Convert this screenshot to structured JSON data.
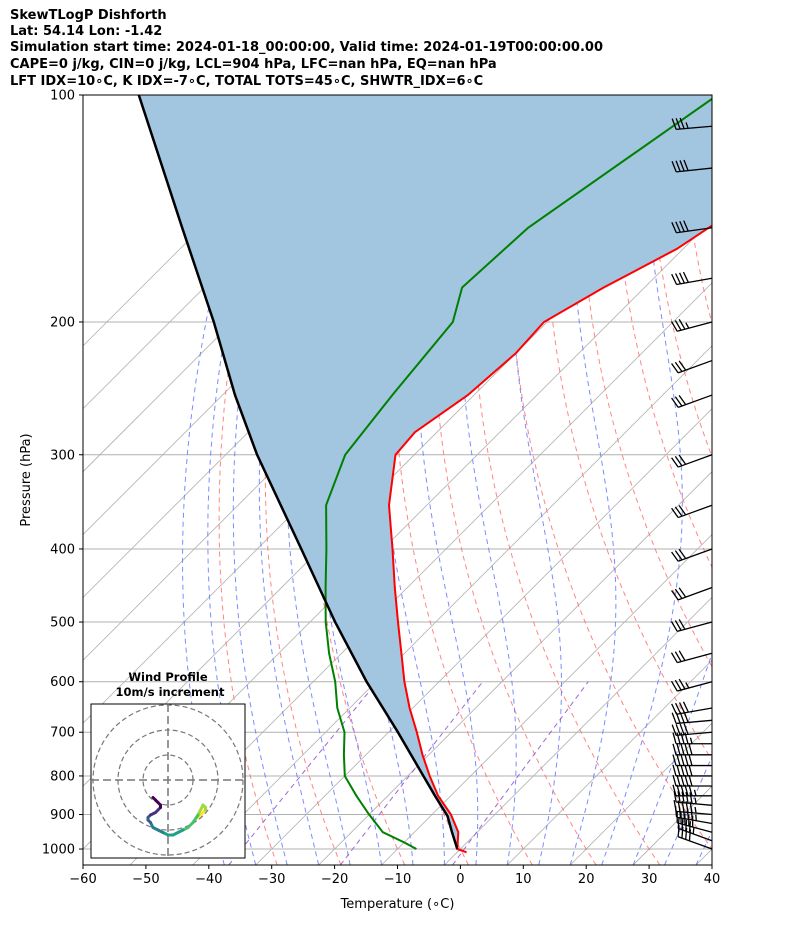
{
  "header": {
    "line1": "SkewTLogP Dishforth",
    "line2": "Lat: 54.14    Lon: -1.42",
    "line3": "Simulation start time: 2024-01-18_00:00:00, Valid time: 2024-01-19T00:00:00.00",
    "line4": "CAPE=0 j/kg, CIN=0 j/kg, LCL=904 hPa, LFC=nan hPa, EQ=nan hPa",
    "line5": "LFT IDX=10∘C, K IDX=-7∘C, TOTAL TOTS=45∘C, SHWTR_IDX=6∘C"
  },
  "chart_data": {
    "type": "skewt",
    "xlabel": "Temperature (∘C)",
    "ylabel": "Pressure (hPa)",
    "xlim": [
      -60,
      40
    ],
    "ylim": [
      1050,
      100
    ],
    "x_ticks": [
      -60,
      -50,
      -40,
      -30,
      -20,
      -10,
      0,
      10,
      20,
      30,
      40
    ],
    "x_tick_labels": [
      "−60",
      "−50",
      "−40",
      "−30",
      "−20",
      "−10",
      "0",
      "10",
      "20",
      "30",
      "40"
    ],
    "y_ticks": [
      1000,
      900,
      800,
      700,
      600,
      500,
      400,
      300,
      200,
      100
    ],
    "y_tick_labels": [
      "1000",
      "900",
      "800",
      "700",
      "600",
      "500",
      "400",
      "300",
      "200",
      "100"
    ],
    "y_scale": "log",
    "grid": true,
    "colors": {
      "temperature": "#ff0000",
      "dewpoint": "#008000",
      "parcel": "#000000",
      "cape_fill": "#a2c5e0",
      "dry_adiabats": "#ff6666",
      "moist_adiabats": "#6677ff",
      "mixing_ratio": "#9955cc",
      "isotherms": "#b0b0b0"
    },
    "temperature": {
      "p": [
        1010,
        1000,
        950,
        900,
        850,
        800,
        750,
        700,
        650,
        600,
        550,
        500,
        450,
        400,
        350,
        300,
        280,
        250,
        220,
        200,
        180,
        160,
        140,
        120,
        100
      ],
      "t": [
        1.5,
        -0.5,
        -3,
        -7,
        -12,
        -16.5,
        -21,
        -25.5,
        -30.5,
        -35.5,
        -40.5,
        -46,
        -52,
        -58.5,
        -66,
        -73,
        -73.5,
        -71,
        -70,
        -70.5,
        -66.5,
        -61,
        -57.5,
        -54.5,
        -52
      ]
    },
    "dewpoint": {
      "p": [
        1000,
        980,
        950,
        900,
        850,
        800,
        750,
        700,
        650,
        600,
        550,
        500,
        450,
        400,
        350,
        300,
        250,
        200,
        180,
        150,
        100
      ],
      "t": [
        -7,
        -10,
        -15,
        -20,
        -25,
        -30,
        -33.5,
        -37,
        -42,
        -46.5,
        -52,
        -57.5,
        -63,
        -69,
        -76,
        -81,
        -83,
        -85,
        -89,
        -88,
        -79
      ]
    },
    "parcel": {
      "p": [
        1000,
        950,
        904,
        850,
        800,
        700,
        600,
        500,
        400,
        300,
        250,
        200,
        150,
        100
      ],
      "t": [
        -0.5,
        -4,
        -7.3,
        -12.5,
        -17.5,
        -28.5,
        -41.5,
        -56,
        -73,
        -95,
        -108,
        -123,
        -143,
        -171
      ]
    },
    "wind_barbs": {
      "p": [
        1000,
        975,
        950,
        925,
        900,
        875,
        850,
        825,
        800,
        775,
        750,
        725,
        700,
        675,
        650,
        600,
        550,
        500,
        450,
        400,
        350,
        300,
        250,
        225,
        200,
        175,
        150,
        125,
        110
      ],
      "speed_kt": [
        40,
        45,
        50,
        55,
        55,
        55,
        55,
        50,
        50,
        50,
        50,
        45,
        40,
        40,
        40,
        35,
        30,
        30,
        30,
        30,
        30,
        30,
        30,
        30,
        35,
        40,
        40,
        40,
        35
      ],
      "dir_deg": [
        290,
        290,
        285,
        280,
        275,
        275,
        270,
        270,
        270,
        270,
        270,
        270,
        265,
        265,
        260,
        255,
        255,
        255,
        250,
        250,
        250,
        250,
        250,
        250,
        255,
        260,
        262,
        264,
        265
      ]
    },
    "hodograph": {
      "title": "Wind Profile",
      "subtitle": "10m/s increment",
      "rings_ms": [
        10,
        20,
        30
      ],
      "u": [
        12,
        13,
        14,
        15,
        15,
        14,
        12,
        10,
        8,
        6,
        4,
        2,
        0,
        -2,
        -4,
        -6,
        -7,
        -8,
        -8,
        -7,
        -5,
        -4,
        -3,
        -3,
        -4,
        -5,
        -6
      ],
      "v": [
        -3,
        -2,
        -1,
        0,
        1,
        2,
        -2,
        -5,
        -7,
        -8,
        -9,
        -10,
        -10,
        -9,
        -8,
        -7,
        -5,
        -4,
        -3,
        -2,
        -1,
        0,
        1,
        2,
        3,
        4,
        5
      ],
      "colormap": "viridis"
    }
  }
}
